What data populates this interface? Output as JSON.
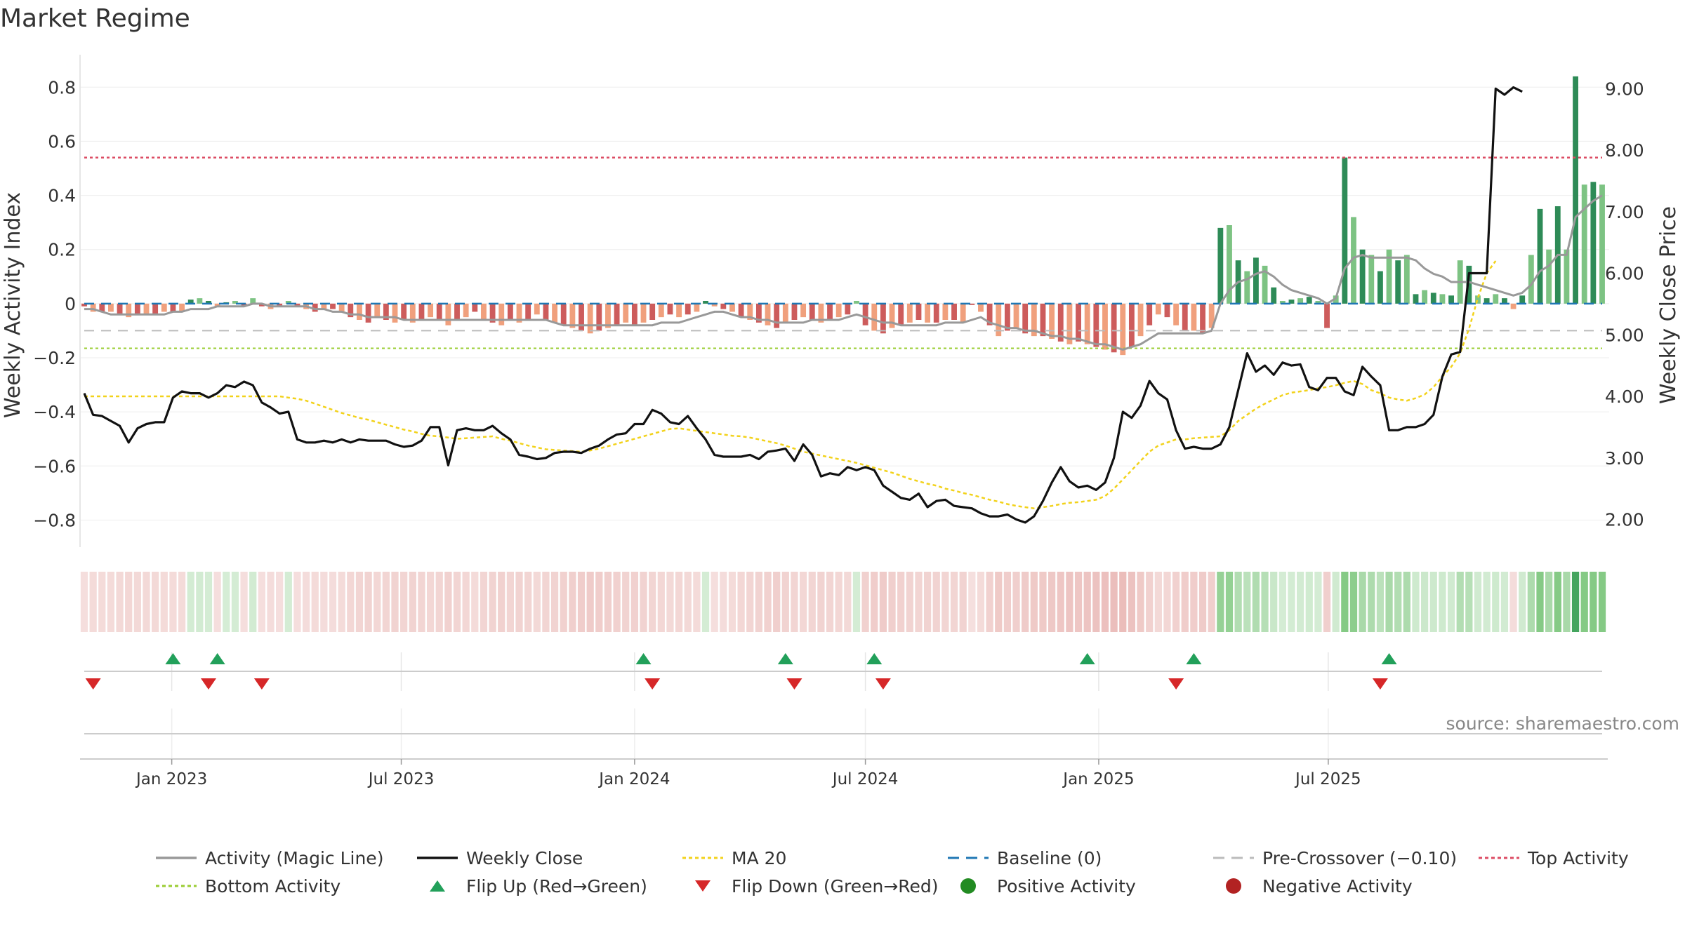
{
  "title": "Market Regime",
  "source": "source: sharemaestro.com",
  "colors": {
    "strong_green": "#2e8b57",
    "light_green": "#7dc383",
    "strong_red": "#cd5c5c",
    "light_red": "#f0a07d",
    "close": "#111111",
    "magic": "#999999",
    "ma": "#f2d21b",
    "baseline": "#1f77b4",
    "pre": "#bbbbbb",
    "top": "#dc4c64",
    "bottom": "#9acd32",
    "up_marker": "#22a05a",
    "down_marker": "#d62728"
  },
  "chart_data": {
    "type": "bar",
    "y_left": {
      "label": "Weekly Activity Index",
      "range": [
        -0.9,
        0.92
      ],
      "ticks": [
        "−0.8",
        "−0.6",
        "−0.4",
        "−0.2",
        "0",
        "0.2",
        "0.4",
        "0.6",
        "0.8"
      ]
    },
    "y_right": {
      "label": "Weekly Close Price",
      "range": [
        1.55,
        9.55
      ],
      "ticks": [
        "2.00",
        "3.00",
        "4.00",
        "5.00",
        "6.00",
        "7.00",
        "8.00",
        "9.00"
      ]
    },
    "x_ticks": [
      {
        "label": "Jan 2023",
        "date": "2023-01-01"
      },
      {
        "label": "Jul 2023",
        "date": "2023-07-01"
      },
      {
        "label": "Jan 2024",
        "date": "2024-01-01"
      },
      {
        "label": "Jul 2024",
        "date": "2024-07-01"
      },
      {
        "label": "Jan 2025",
        "date": "2025-01-01"
      },
      {
        "label": "Jul 2025",
        "date": "2025-07-01"
      }
    ],
    "start_date": "2022-10-24",
    "levels": {
      "baseline": 0,
      "pre_crossover": -0.1,
      "top": 0.54,
      "bottom": -0.165
    },
    "activity": [
      -0.01,
      -0.03,
      -0.03,
      -0.03,
      -0.04,
      -0.05,
      -0.04,
      -0.04,
      -0.04,
      -0.03,
      -0.03,
      -0.03,
      0.015,
      0.02,
      0.01,
      -0.01,
      0.005,
      0.01,
      -0.01,
      0.02,
      -0.01,
      -0.02,
      -0.01,
      0.01,
      -0.01,
      -0.02,
      -0.03,
      -0.02,
      -0.02,
      -0.03,
      -0.05,
      -0.06,
      -0.07,
      -0.05,
      -0.06,
      -0.07,
      -0.06,
      -0.07,
      -0.06,
      -0.05,
      -0.06,
      -0.08,
      -0.06,
      -0.05,
      -0.03,
      -0.06,
      -0.07,
      -0.08,
      -0.06,
      -0.07,
      -0.06,
      -0.04,
      -0.06,
      -0.07,
      -0.08,
      -0.09,
      -0.1,
      -0.11,
      -0.1,
      -0.09,
      -0.08,
      -0.07,
      -0.08,
      -0.07,
      -0.06,
      -0.05,
      -0.04,
      -0.05,
      -0.04,
      -0.03,
      0.01,
      -0.01,
      -0.02,
      -0.03,
      -0.05,
      -0.06,
      -0.07,
      -0.08,
      -0.09,
      -0.07,
      -0.06,
      -0.05,
      -0.06,
      -0.07,
      -0.06,
      -0.05,
      -0.04,
      0.01,
      -0.08,
      -0.1,
      -0.11,
      -0.09,
      -0.08,
      -0.07,
      -0.06,
      -0.07,
      -0.07,
      -0.06,
      -0.06,
      -0.07,
      -0.005,
      -0.03,
      -0.08,
      -0.12,
      -0.1,
      -0.09,
      -0.11,
      -0.12,
      -0.12,
      -0.13,
      -0.14,
      -0.15,
      -0.14,
      -0.15,
      -0.16,
      -0.17,
      -0.18,
      -0.19,
      -0.16,
      -0.12,
      -0.08,
      -0.04,
      -0.05,
      -0.08,
      -0.1,
      -0.1,
      -0.11,
      -0.09,
      0.28,
      0.29,
      0.16,
      0.12,
      0.17,
      0.14,
      0.06,
      0.01,
      0.015,
      0.02,
      0.025,
      0.01,
      -0.09,
      0.03,
      0.54,
      0.32,
      0.2,
      0.18,
      0.12,
      0.2,
      0.16,
      0.18,
      0.035,
      0.05,
      0.04,
      0.035,
      0.03,
      0.16,
      0.14,
      0.03,
      0.02,
      0.035,
      0.02,
      -0.02,
      0.03,
      0.18,
      0.35,
      0.2,
      0.36,
      0.2,
      0.84,
      0.44,
      0.45,
      0.44
    ],
    "magic_line": [
      -0.02,
      -0.02,
      -0.03,
      -0.04,
      -0.04,
      -0.04,
      -0.04,
      -0.04,
      -0.04,
      -0.04,
      -0.03,
      -0.03,
      -0.02,
      -0.02,
      -0.02,
      -0.01,
      -0.01,
      -0.01,
      -0.01,
      0,
      0,
      -0.01,
      -0.01,
      -0.01,
      -0.01,
      -0.01,
      -0.02,
      -0.02,
      -0.03,
      -0.03,
      -0.04,
      -0.04,
      -0.05,
      -0.05,
      -0.05,
      -0.05,
      -0.06,
      -0.06,
      -0.06,
      -0.06,
      -0.06,
      -0.06,
      -0.06,
      -0.06,
      -0.06,
      -0.06,
      -0.06,
      -0.06,
      -0.06,
      -0.06,
      -0.06,
      -0.06,
      -0.06,
      -0.07,
      -0.08,
      -0.08,
      -0.08,
      -0.08,
      -0.08,
      -0.08,
      -0.08,
      -0.08,
      -0.08,
      -0.08,
      -0.08,
      -0.07,
      -0.07,
      -0.07,
      -0.06,
      -0.05,
      -0.04,
      -0.03,
      -0.03,
      -0.04,
      -0.05,
      -0.05,
      -0.06,
      -0.06,
      -0.07,
      -0.07,
      -0.07,
      -0.07,
      -0.06,
      -0.06,
      -0.06,
      -0.06,
      -0.05,
      -0.04,
      -0.05,
      -0.06,
      -0.07,
      -0.07,
      -0.08,
      -0.08,
      -0.08,
      -0.08,
      -0.08,
      -0.07,
      -0.07,
      -0.07,
      -0.06,
      -0.05,
      -0.07,
      -0.08,
      -0.09,
      -0.09,
      -0.1,
      -0.1,
      -0.11,
      -0.12,
      -0.12,
      -0.13,
      -0.13,
      -0.14,
      -0.15,
      -0.15,
      -0.16,
      -0.17,
      -0.16,
      -0.15,
      -0.13,
      -0.11,
      -0.11,
      -0.11,
      -0.11,
      -0.11,
      -0.11,
      -0.1,
      0.0,
      0.05,
      0.08,
      0.09,
      0.11,
      0.12,
      0.1,
      0.07,
      0.05,
      0.04,
      0.03,
      0.02,
      0.0,
      0.02,
      0.13,
      0.17,
      0.18,
      0.17,
      0.17,
      0.17,
      0.17,
      0.17,
      0.16,
      0.13,
      0.11,
      0.1,
      0.08,
      0.08,
      0.08,
      0.07,
      0.06,
      0.05,
      0.04,
      0.03,
      0.04,
      0.07,
      0.12,
      0.14,
      0.18,
      0.18,
      0.32,
      0.35,
      0.38,
      0.4
    ],
    "weekly_close": [
      4.05,
      3.7,
      3.68,
      3.6,
      3.52,
      3.25,
      3.48,
      3.55,
      3.58,
      3.58,
      3.98,
      4.08,
      4.05,
      4.05,
      3.98,
      4.05,
      4.18,
      4.15,
      4.24,
      4.18,
      3.9,
      3.82,
      3.72,
      3.75,
      3.3,
      3.25,
      3.25,
      3.28,
      3.25,
      3.3,
      3.25,
      3.3,
      3.28,
      3.28,
      3.28,
      3.22,
      3.18,
      3.2,
      3.28,
      3.5,
      3.5,
      2.88,
      3.45,
      3.48,
      3.45,
      3.45,
      3.52,
      3.4,
      3.3,
      3.05,
      3.02,
      2.98,
      3.0,
      3.08,
      3.1,
      3.1,
      3.08,
      3.15,
      3.2,
      3.3,
      3.38,
      3.4,
      3.55,
      3.55,
      3.78,
      3.72,
      3.58,
      3.55,
      3.68,
      3.48,
      3.3,
      3.05,
      3.02,
      3.02,
      3.02,
      3.05,
      2.98,
      3.1,
      3.12,
      3.15,
      2.95,
      3.22,
      3.05,
      2.7,
      2.75,
      2.72,
      2.85,
      2.8,
      2.85,
      2.8,
      2.55,
      2.45,
      2.35,
      2.32,
      2.42,
      2.2,
      2.3,
      2.32,
      2.22,
      2.2,
      2.18,
      2.1,
      2.05,
      2.05,
      2.08,
      2.0,
      1.95,
      2.05,
      2.3,
      2.6,
      2.85,
      2.62,
      2.52,
      2.55,
      2.48,
      2.6,
      3.0,
      3.75,
      3.65,
      3.85,
      4.25,
      4.05,
      3.95,
      3.45,
      3.15,
      3.18,
      3.15,
      3.15,
      3.22,
      3.5,
      4.1,
      4.7,
      4.4,
      4.5,
      4.35,
      4.55,
      4.5,
      4.52,
      4.15,
      4.1,
      4.3,
      4.3,
      4.08,
      4.02,
      4.48,
      4.32,
      4.18,
      3.45,
      3.45,
      3.5,
      3.5,
      3.55,
      3.7,
      4.32,
      4.68,
      4.72,
      6.0,
      6.0,
      6.0,
      9.0,
      8.9,
      9.02,
      8.95
    ],
    "ma20": [
      4.0,
      4.0,
      4.0,
      4.0,
      4.0,
      4.0,
      4.0,
      4.0,
      4.0,
      4.0,
      4.0,
      4.0,
      4.0,
      4.0,
      4.0,
      4.0,
      4.0,
      4.0,
      4.0,
      4.0,
      4.0,
      4.0,
      4.0,
      3.98,
      3.96,
      3.93,
      3.88,
      3.83,
      3.78,
      3.73,
      3.69,
      3.65,
      3.62,
      3.58,
      3.54,
      3.5,
      3.46,
      3.43,
      3.39,
      3.36,
      3.35,
      3.33,
      3.31,
      3.32,
      3.33,
      3.34,
      3.35,
      3.31,
      3.28,
      3.24,
      3.2,
      3.17,
      3.14,
      3.13,
      3.12,
      3.11,
      3.1,
      3.12,
      3.15,
      3.19,
      3.23,
      3.27,
      3.31,
      3.35,
      3.39,
      3.43,
      3.47,
      3.48,
      3.46,
      3.44,
      3.42,
      3.4,
      3.38,
      3.36,
      3.35,
      3.33,
      3.3,
      3.27,
      3.24,
      3.2,
      3.15,
      3.1,
      3.07,
      3.04,
      3.01,
      2.98,
      2.95,
      2.92,
      2.88,
      2.84,
      2.8,
      2.76,
      2.71,
      2.66,
      2.62,
      2.58,
      2.55,
      2.5,
      2.47,
      2.43,
      2.4,
      2.36,
      2.32,
      2.29,
      2.25,
      2.22,
      2.2,
      2.18,
      2.2,
      2.22,
      2.25,
      2.27,
      2.28,
      2.3,
      2.32,
      2.38,
      2.5,
      2.65,
      2.8,
      2.95,
      3.1,
      3.2,
      3.25,
      3.3,
      3.3,
      3.32,
      3.33,
      3.34,
      3.35,
      3.45,
      3.6,
      3.7,
      3.8,
      3.88,
      3.95,
      4.02,
      4.06,
      4.08,
      4.1,
      4.13,
      4.15,
      4.18,
      4.22,
      4.25,
      4.2,
      4.1,
      4.05,
      3.98,
      3.95,
      3.93,
      3.97,
      4.03,
      4.15,
      4.32,
      4.48,
      4.7,
      5.1,
      5.6,
      6.0,
      6.2
    ],
    "flip_up_weeks": [
      10,
      15,
      63,
      79,
      89,
      113,
      125,
      147
    ],
    "flip_down_weeks": [
      1,
      14,
      20,
      64,
      80,
      90,
      123,
      146
    ]
  },
  "legend": [
    {
      "label": "Activity (Magic Line)",
      "icon": "line",
      "color": "#999999"
    },
    {
      "label": "Weekly Close",
      "icon": "line",
      "color": "#111111"
    },
    {
      "label": "MA 20",
      "icon": "dotted",
      "color": "#f2d21b"
    },
    {
      "label": "Baseline (0)",
      "icon": "dashed",
      "color": "#1f77b4"
    },
    {
      "label": "Pre-Crossover (−0.10)",
      "icon": "dashed",
      "color": "#bbbbbb"
    },
    {
      "label": "Top Activity",
      "icon": "dotted",
      "color": "#dc4c64"
    },
    {
      "label": "Bottom Activity",
      "icon": "dotted",
      "color": "#9acd32"
    },
    {
      "label": "Flip Up (Red→Green)",
      "icon": "triangle-up",
      "color": "#22a05a"
    },
    {
      "label": "Flip Down (Green→Red)",
      "icon": "triangle-down",
      "color": "#d62728"
    },
    {
      "label": "Positive Activity",
      "icon": "circle",
      "color": "#228b22"
    },
    {
      "label": "Negative Activity",
      "icon": "circle",
      "color": "#b22222"
    }
  ]
}
